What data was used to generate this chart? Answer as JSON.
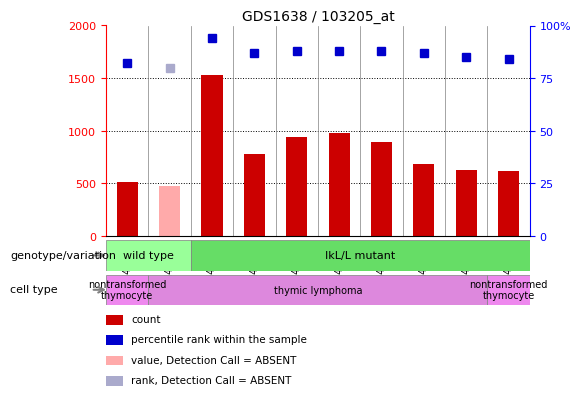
{
  "title": "GDS1638 / 103205_at",
  "samples": [
    "GSM47606",
    "GSM47607",
    "GSM47600",
    "GSM47601",
    "GSM47602",
    "GSM47603",
    "GSM47604",
    "GSM47605",
    "GSM47608",
    "GSM47609"
  ],
  "counts": [
    510,
    480,
    1530,
    780,
    940,
    975,
    890,
    680,
    625,
    615
  ],
  "counts_absent": [
    false,
    true,
    false,
    false,
    false,
    false,
    false,
    false,
    false,
    false
  ],
  "percentile_ranks": [
    82,
    80,
    94,
    87,
    88,
    88,
    88,
    87,
    85,
    84
  ],
  "percentile_absent": [
    false,
    true,
    false,
    false,
    false,
    false,
    false,
    false,
    false,
    false
  ],
  "ylim_left": [
    0,
    2000
  ],
  "ylim_right": [
    0,
    100
  ],
  "yticks_left": [
    0,
    500,
    1000,
    1500,
    2000
  ],
  "yticks_right": [
    0,
    25,
    50,
    75,
    100
  ],
  "bar_color_present": "#cc0000",
  "bar_color_absent": "#ffaaaa",
  "dot_color_present": "#0000cc",
  "dot_color_absent": "#aaaacc",
  "genotype_row": [
    {
      "label": "wild type",
      "start": 0,
      "end": 2,
      "color": "#99ff99"
    },
    {
      "label": "IkL/L mutant",
      "start": 2,
      "end": 10,
      "color": "#66dd66"
    }
  ],
  "celltype_row": [
    {
      "label": "nontransformed\nthymocyte",
      "start": 0,
      "end": 1,
      "color": "#ee88ee"
    },
    {
      "label": "thymic lymphoma",
      "start": 1,
      "end": 9,
      "color": "#dd88dd"
    },
    {
      "label": "nontransformed\nthymocyte",
      "start": 9,
      "end": 10,
      "color": "#ee88ee"
    }
  ],
  "genotype_label": "genotype/variation",
  "celltype_label": "cell type",
  "legend_items": [
    {
      "label": "count",
      "color": "#cc0000",
      "marker": "s"
    },
    {
      "label": "percentile rank within the sample",
      "color": "#0000cc",
      "marker": "s"
    },
    {
      "label": "value, Detection Call = ABSENT",
      "color": "#ffaaaa",
      "marker": "s"
    },
    {
      "label": "rank, Detection Call = ABSENT",
      "color": "#aaaacc",
      "marker": "s"
    }
  ]
}
